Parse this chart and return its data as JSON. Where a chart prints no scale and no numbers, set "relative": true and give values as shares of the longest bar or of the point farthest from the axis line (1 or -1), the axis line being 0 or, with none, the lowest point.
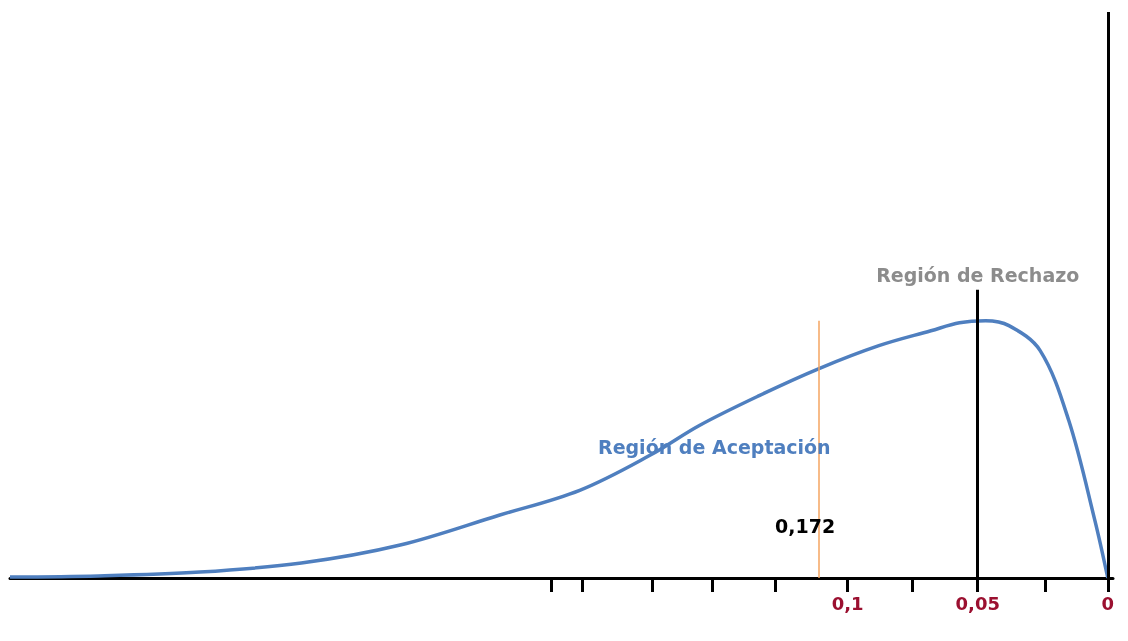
{
  "chart_data": {
    "type": "line",
    "relative": true,
    "marker": "none",
    "grid": false,
    "x": [
      0.422,
      0.388,
      0.349,
      0.31,
      0.272,
      0.234,
      0.203,
      0.176,
      0.157,
      0.134,
      0.111,
      0.088,
      0.068,
      0.057,
      0.047,
      0.038,
      0.026,
      0.015,
      0.005,
      0
    ],
    "series": [
      {
        "color": "#4f7fbf",
        "values": [
          0.004,
          0.008,
          0.023,
          0.058,
          0.128,
          0.244,
          0.341,
          0.477,
          0.593,
          0.709,
          0.814,
          0.903,
          0.961,
          0.992,
          1,
          0.981,
          0.884,
          0.612,
          0.225,
          0
        ]
      }
    ],
    "xlim": [
      0.422,
      -0.002
    ],
    "xticks": [
      {
        "value": 0.214,
        "label": null
      },
      {
        "value": 0.202,
        "label": null
      },
      {
        "value": 0.175,
        "label": null
      },
      {
        "value": 0.152,
        "label": null
      },
      {
        "value": 0.128,
        "label": null
      },
      {
        "value": 0.1,
        "label": "0,1"
      },
      {
        "value": 0.075,
        "label": null
      },
      {
        "value": 0.05,
        "label": "0,05"
      },
      {
        "value": 0.024,
        "label": null
      },
      {
        "value": 0,
        "label": "0"
      }
    ],
    "ref_lines": [
      {
        "axis": "x",
        "value": 0.05,
        "label": "Región de Rechazo",
        "color": "#000000"
      },
      {
        "axis": "x",
        "value": 0.111,
        "color": "#f4a460"
      },
      {
        "axis": "x",
        "value": 0,
        "color": "#000000"
      }
    ],
    "annotations": [
      "Región de Aceptación",
      "0,172"
    ]
  }
}
